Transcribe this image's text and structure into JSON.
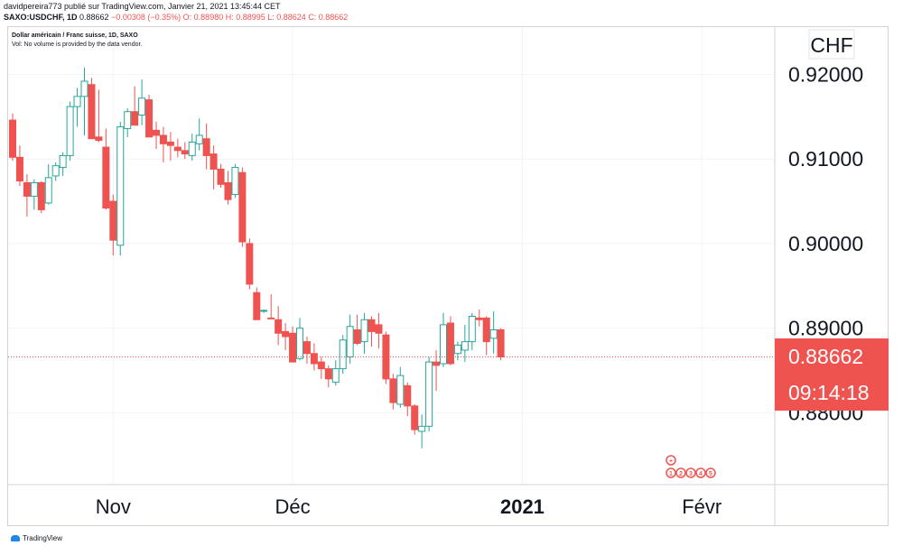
{
  "header": {
    "author_line": "davidpereira773 publié sur TradingView.com, Janvier 21, 2021 13:45:44 CET",
    "symbol": "SAXO:USDCHF, 1D",
    "last": "0.88662",
    "change": "−0.00308 (−0.35%)",
    "ohlc": "O: 0.88980 H: 0.88995 L: 0.88624 C: 0.88662"
  },
  "legend": {
    "title": "Dollar américain / Franc suisse, 1D, SAXO",
    "volume_note": "Vol: No volume is provided by the data vendor."
  },
  "footer": {
    "brand": "TradingView"
  },
  "colors": {
    "up": "#26a69a",
    "down": "#ef5350",
    "grid": "#f0f3fa"
  },
  "chart_data": {
    "type": "candlestick",
    "currency_label": "CHF",
    "price_badge": "0.88662",
    "countdown_badge": "09:14:18",
    "y_range": [
      0.8715,
      0.9256
    ],
    "y_ticks": [
      "0.92000",
      "0.91000",
      "0.90000",
      "0.89000",
      "0.88000"
    ],
    "x_ticks": [
      {
        "label": "Nov",
        "bold": false,
        "index": 14
      },
      {
        "label": "Déc",
        "bold": false,
        "index": 39
      },
      {
        "label": "2021",
        "bold": true,
        "index": 71
      },
      {
        "label": "Févr",
        "bold": false,
        "index": 96
      }
    ],
    "event_markers": [
      "+",
      "1",
      "2",
      "3",
      "4",
      "5"
    ],
    "candles": [
      {
        "o": 0.9146,
        "h": 0.9154,
        "l": 0.9098,
        "c": 0.9102
      },
      {
        "o": 0.9102,
        "h": 0.9116,
        "l": 0.9068,
        "c": 0.9074
      },
      {
        "o": 0.9072,
        "h": 0.9082,
        "l": 0.9032,
        "c": 0.9056
      },
      {
        "o": 0.9056,
        "h": 0.9076,
        "l": 0.904,
        "c": 0.9072
      },
      {
        "o": 0.9072,
        "h": 0.9074,
        "l": 0.9036,
        "c": 0.904
      },
      {
        "o": 0.9048,
        "h": 0.9094,
        "l": 0.9046,
        "c": 0.9078
      },
      {
        "o": 0.908,
        "h": 0.9096,
        "l": 0.9074,
        "c": 0.9092
      },
      {
        "o": 0.909,
        "h": 0.9108,
        "l": 0.908,
        "c": 0.9104
      },
      {
        "o": 0.9104,
        "h": 0.9168,
        "l": 0.9098,
        "c": 0.9162
      },
      {
        "o": 0.9162,
        "h": 0.9184,
        "l": 0.9138,
        "c": 0.9174
      },
      {
        "o": 0.9174,
        "h": 0.9208,
        "l": 0.9128,
        "c": 0.9192
      },
      {
        "o": 0.9188,
        "h": 0.9196,
        "l": 0.9124,
        "c": 0.9124
      },
      {
        "o": 0.9126,
        "h": 0.9182,
        "l": 0.912,
        "c": 0.9122
      },
      {
        "o": 0.9114,
        "h": 0.9136,
        "l": 0.904,
        "c": 0.9042
      },
      {
        "o": 0.905,
        "h": 0.9058,
        "l": 0.8986,
        "c": 0.9004
      },
      {
        "o": 0.8998,
        "h": 0.9144,
        "l": 0.8986,
        "c": 0.9138
      },
      {
        "o": 0.9136,
        "h": 0.916,
        "l": 0.9126,
        "c": 0.9156
      },
      {
        "o": 0.9156,
        "h": 0.9186,
        "l": 0.914,
        "c": 0.914
      },
      {
        "o": 0.9152,
        "h": 0.9194,
        "l": 0.914,
        "c": 0.9172
      },
      {
        "o": 0.917,
        "h": 0.9176,
        "l": 0.9126,
        "c": 0.9126
      },
      {
        "o": 0.9134,
        "h": 0.9144,
        "l": 0.9112,
        "c": 0.9128
      },
      {
        "o": 0.9128,
        "h": 0.9138,
        "l": 0.9096,
        "c": 0.9118
      },
      {
        "o": 0.912,
        "h": 0.9132,
        "l": 0.9098,
        "c": 0.9116
      },
      {
        "o": 0.9114,
        "h": 0.9124,
        "l": 0.9102,
        "c": 0.911
      },
      {
        "o": 0.911,
        "h": 0.912,
        "l": 0.91,
        "c": 0.9106
      },
      {
        "o": 0.9104,
        "h": 0.913,
        "l": 0.9098,
        "c": 0.912
      },
      {
        "o": 0.9118,
        "h": 0.9148,
        "l": 0.911,
        "c": 0.9128
      },
      {
        "o": 0.9124,
        "h": 0.9142,
        "l": 0.9088,
        "c": 0.9104
      },
      {
        "o": 0.9106,
        "h": 0.9116,
        "l": 0.9064,
        "c": 0.9088
      },
      {
        "o": 0.9088,
        "h": 0.9094,
        "l": 0.9066,
        "c": 0.907
      },
      {
        "o": 0.9072,
        "h": 0.9086,
        "l": 0.9046,
        "c": 0.9052
      },
      {
        "o": 0.9058,
        "h": 0.9094,
        "l": 0.9054,
        "c": 0.909
      },
      {
        "o": 0.9084,
        "h": 0.909,
        "l": 0.8996,
        "c": 0.9002
      },
      {
        "o": 0.9,
        "h": 0.9006,
        "l": 0.8946,
        "c": 0.8952
      },
      {
        "o": 0.8942,
        "h": 0.8948,
        "l": 0.891,
        "c": 0.891
      },
      {
        "o": 0.892,
        "h": 0.8922,
        "l": 0.8918,
        "c": 0.8921
      },
      {
        "o": 0.8912,
        "h": 0.894,
        "l": 0.8912,
        "c": 0.8911
      },
      {
        "o": 0.891,
        "h": 0.8926,
        "l": 0.888,
        "c": 0.8894
      },
      {
        "o": 0.8896,
        "h": 0.8906,
        "l": 0.8874,
        "c": 0.889
      },
      {
        "o": 0.8894,
        "h": 0.8902,
        "l": 0.886,
        "c": 0.886
      },
      {
        "o": 0.8864,
        "h": 0.8912,
        "l": 0.8862,
        "c": 0.89
      },
      {
        "o": 0.8884,
        "h": 0.889,
        "l": 0.8858,
        "c": 0.887
      },
      {
        "o": 0.887,
        "h": 0.8882,
        "l": 0.885,
        "c": 0.8858
      },
      {
        "o": 0.886,
        "h": 0.8866,
        "l": 0.884,
        "c": 0.8852
      },
      {
        "o": 0.8852,
        "h": 0.8856,
        "l": 0.883,
        "c": 0.884
      },
      {
        "o": 0.8836,
        "h": 0.8862,
        "l": 0.8832,
        "c": 0.8852
      },
      {
        "o": 0.8852,
        "h": 0.8892,
        "l": 0.8846,
        "c": 0.8886
      },
      {
        "o": 0.8866,
        "h": 0.8916,
        "l": 0.8858,
        "c": 0.8902
      },
      {
        "o": 0.8898,
        "h": 0.8916,
        "l": 0.888,
        "c": 0.8882
      },
      {
        "o": 0.8884,
        "h": 0.8918,
        "l": 0.887,
        "c": 0.891
      },
      {
        "o": 0.891,
        "h": 0.8914,
        "l": 0.8878,
        "c": 0.8896
      },
      {
        "o": 0.8904,
        "h": 0.8918,
        "l": 0.8876,
        "c": 0.8894
      },
      {
        "o": 0.8892,
        "h": 0.8896,
        "l": 0.8834,
        "c": 0.884
      },
      {
        "o": 0.884,
        "h": 0.8846,
        "l": 0.8804,
        "c": 0.8812
      },
      {
        "o": 0.881,
        "h": 0.8854,
        "l": 0.8806,
        "c": 0.8844
      },
      {
        "o": 0.8832,
        "h": 0.8836,
        "l": 0.8796,
        "c": 0.8808
      },
      {
        "o": 0.8808,
        "h": 0.881,
        "l": 0.8774,
        "c": 0.878
      },
      {
        "o": 0.8778,
        "h": 0.8798,
        "l": 0.8758,
        "c": 0.8784
      },
      {
        "o": 0.8784,
        "h": 0.8866,
        "l": 0.8778,
        "c": 0.886
      },
      {
        "o": 0.886,
        "h": 0.8874,
        "l": 0.8826,
        "c": 0.8856
      },
      {
        "o": 0.8858,
        "h": 0.8918,
        "l": 0.8854,
        "c": 0.8904
      },
      {
        "o": 0.8906,
        "h": 0.8914,
        "l": 0.8856,
        "c": 0.8858
      },
      {
        "o": 0.887,
        "h": 0.8884,
        "l": 0.8862,
        "c": 0.888
      },
      {
        "o": 0.8874,
        "h": 0.8904,
        "l": 0.886,
        "c": 0.8884
      },
      {
        "o": 0.8884,
        "h": 0.8918,
        "l": 0.8874,
        "c": 0.8914
      },
      {
        "o": 0.8912,
        "h": 0.8922,
        "l": 0.8902,
        "c": 0.891
      },
      {
        "o": 0.8912,
        "h": 0.8914,
        "l": 0.8868,
        "c": 0.8884
      },
      {
        "o": 0.8888,
        "h": 0.892,
        "l": 0.887,
        "c": 0.8898
      },
      {
        "o": 0.8898,
        "h": 0.89,
        "l": 0.8862,
        "c": 0.8866
      }
    ]
  }
}
